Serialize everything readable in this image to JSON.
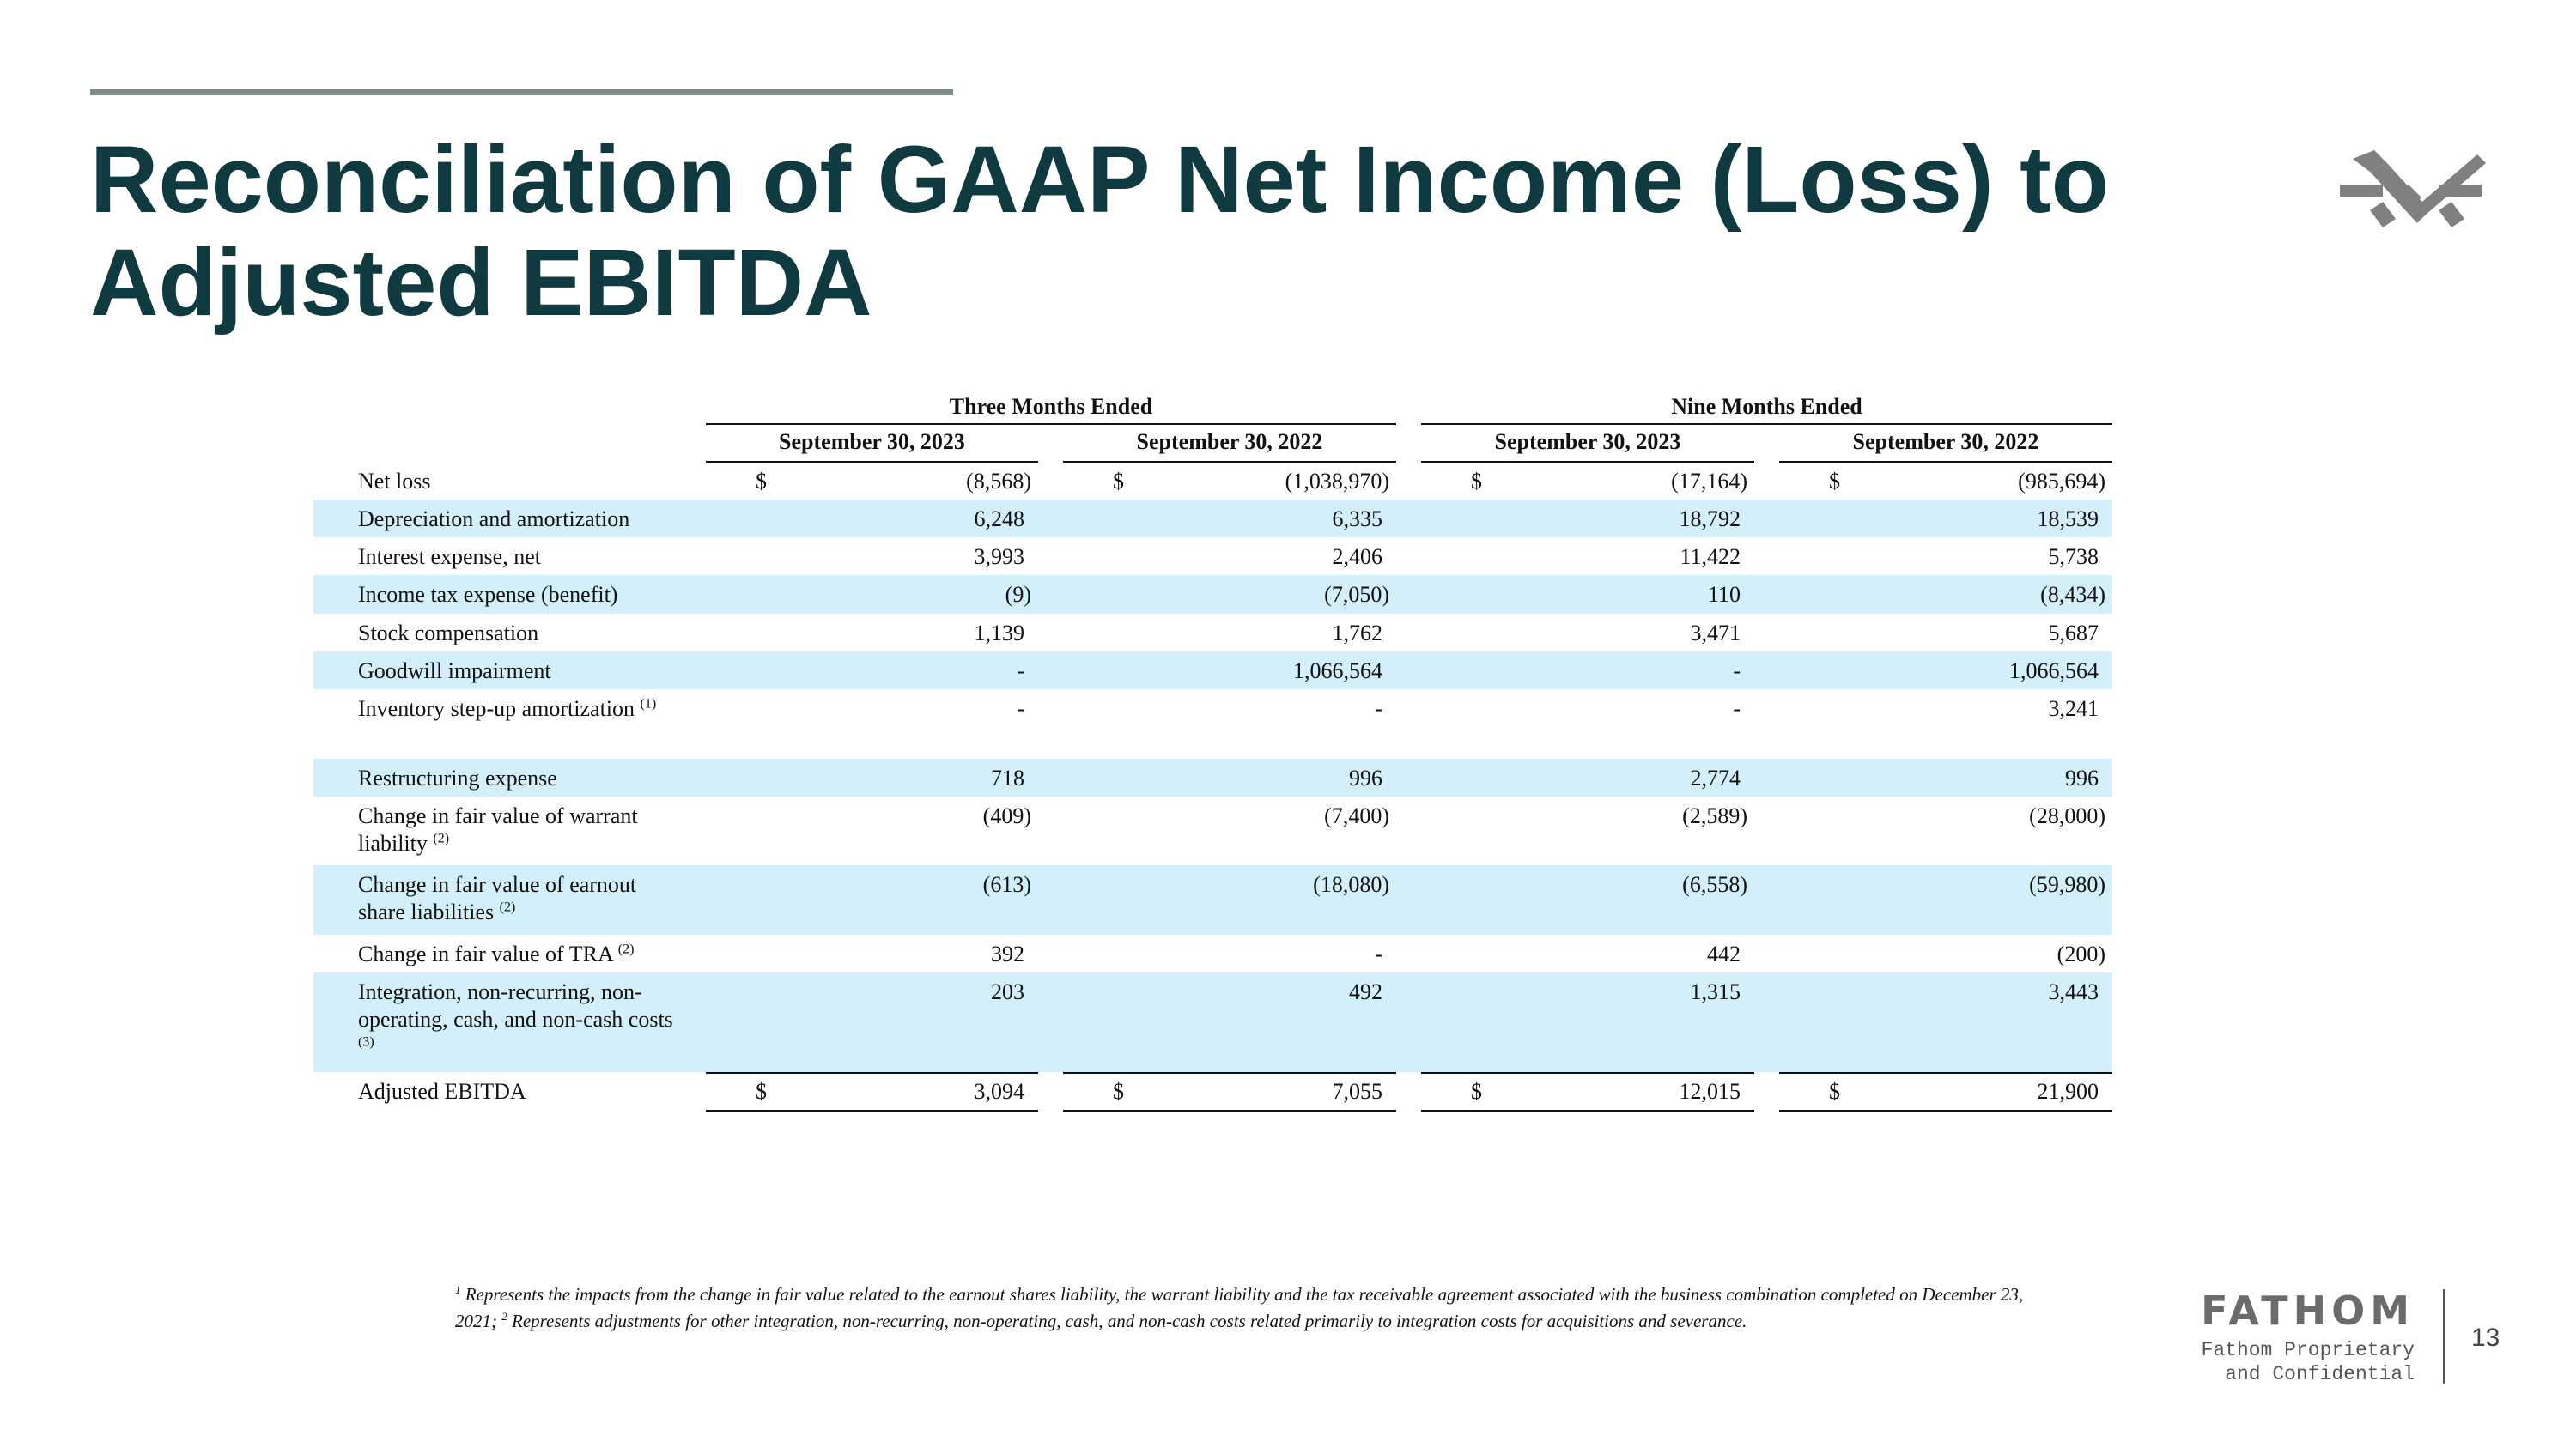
{
  "header": {
    "title": "Reconciliation of GAAP Net Income (Loss) to Adjusted EBITDA"
  },
  "table": {
    "groups": [
      "Three Months Ended",
      "Nine Months Ended"
    ],
    "columns": [
      "September 30, 2023",
      "September 30, 2022",
      "September 30, 2023",
      "September 30, 2022"
    ],
    "rows": [
      {
        "label": "Net loss",
        "currency": "$",
        "cells": [
          "(8,568)",
          "(1,038,970)",
          "(17,164)",
          "(985,694)"
        ]
      },
      {
        "label": "Depreciation and amortization",
        "cells": [
          "6,248",
          "6,335",
          "18,792",
          "18,539"
        ]
      },
      {
        "label": "Interest expense, net",
        "cells": [
          "3,993",
          "2,406",
          "11,422",
          "5,738"
        ]
      },
      {
        "label": "Income tax expense (benefit)",
        "cells": [
          "(9)",
          "(7,050)",
          "110",
          "(8,434)"
        ]
      },
      {
        "label": "Stock compensation",
        "cells": [
          "1,139",
          "1,762",
          "3,471",
          "5,687"
        ]
      },
      {
        "label": "Goodwill impairment",
        "cells": [
          "-",
          "1,066,564",
          "-",
          "1,066,564"
        ]
      },
      {
        "label": "Inventory step-up amortization",
        "sup": "(1)",
        "cells": [
          "-",
          "-",
          "-",
          "3,241"
        ]
      },
      {
        "label": "Restructuring expense",
        "cells": [
          "718",
          "996",
          "2,774",
          "996"
        ]
      },
      {
        "label": "Change in fair value of warrant liability",
        "sup": "(2)",
        "cells": [
          "(409)",
          "(7,400)",
          "(2,589)",
          "(28,000)"
        ]
      },
      {
        "label": "Change in fair value of earnout share liabilities",
        "sup": "(2)",
        "cells": [
          "(613)",
          "(18,080)",
          "(6,558)",
          "(59,980)"
        ]
      },
      {
        "label": "Change in fair value of TRA",
        "sup": "(2)",
        "cells": [
          "392",
          "-",
          "442",
          "(200)"
        ]
      },
      {
        "label": "Integration, non-recurring, non-operating, cash, and non-cash costs",
        "sup": "(3)",
        "cells": [
          "203",
          "492",
          "1,315",
          "3,443"
        ]
      },
      {
        "label": "Adjusted EBITDA",
        "currency": "$",
        "cells": [
          "3,094",
          "7,055",
          "12,015",
          "21,900"
        ]
      }
    ]
  },
  "footnote": [
    {
      "sup": "1",
      "text": "Represents the impacts from the change in fair value related to the earnout shares liability, the warrant liability and the tax receivable agreement associated with the business combination completed on December 23, 2021; "
    },
    {
      "sup": "2",
      "text": "Represents adjustments for other integration, non-recurring, non-operating, cash, and non-cash costs related primarily to integration costs for acquisitions and severance."
    }
  ],
  "footer": {
    "brand": "FATHOM",
    "note": [
      "Fathom Proprietary",
      "and Confidential"
    ],
    "page": "13"
  }
}
